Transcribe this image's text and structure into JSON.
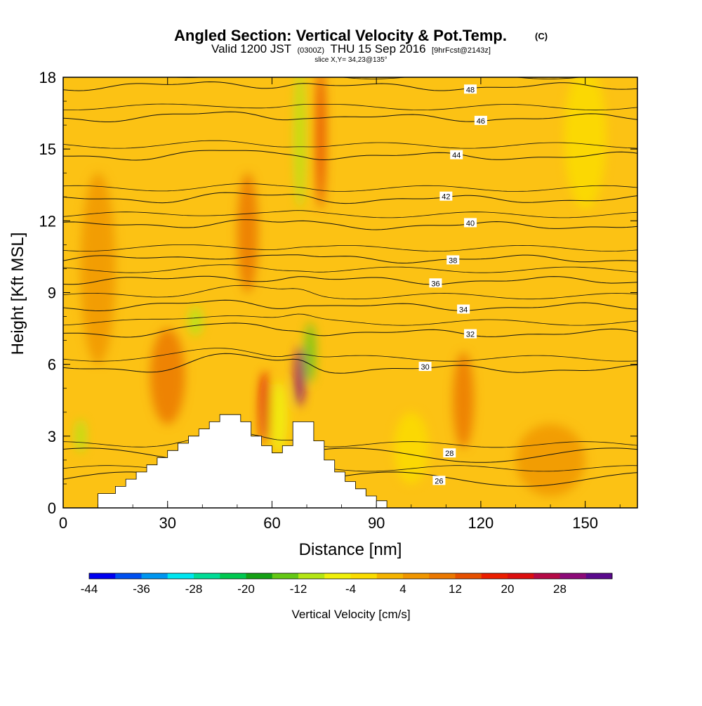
{
  "chart_data": {
    "type": "heatmap",
    "title": "Angled Section: Vertical Velocity & Pot.Temp.",
    "title_unit": "(C)",
    "subtitle": {
      "valid_prefix": "Valid 1200 JST",
      "utc": "(0300Z)",
      "date": "THU 15 Sep 2016",
      "forecast": "[9hrFcst@2143z]"
    },
    "slice_note": "slice X,Y= 34,23@135°",
    "xlabel": "Distance [nm]",
    "ylabel": "Height [Kft MSL]",
    "xlim": [
      0,
      165
    ],
    "ylim": [
      0,
      18
    ],
    "x_ticks": [
      0,
      30,
      60,
      90,
      120,
      150
    ],
    "y_ticks": [
      0,
      3,
      6,
      9,
      12,
      15,
      18
    ],
    "colorbar": {
      "label": "Vertical Velocity [cm/s]",
      "tick_labels": [
        -44,
        -36,
        -28,
        -20,
        -12,
        -4,
        4,
        12,
        20,
        28
      ],
      "colors": [
        "#0000f0",
        "#0050f0",
        "#0096f0",
        "#00e6f0",
        "#00dc96",
        "#00c850",
        "#14a014",
        "#64c814",
        "#b4e614",
        "#f0f00a",
        "#fadc00",
        "#f5b400",
        "#f09600",
        "#eb7800",
        "#e65000",
        "#eb1e00",
        "#dc0f0f",
        "#b40a46",
        "#8c0a78",
        "#5a0a8c"
      ]
    },
    "background_color": "#fcc214",
    "terrain_color": "#ffffff",
    "field_features": [
      {
        "x": 53,
        "y": 11.5,
        "w": 6,
        "h": 5.0,
        "v": 10
      },
      {
        "x": 58,
        "y": 4.2,
        "w": 3,
        "h": 3.0,
        "v": 22
      },
      {
        "x": 68,
        "y": 5.5,
        "w": 3,
        "h": 2.5,
        "v": 30
      },
      {
        "x": 71,
        "y": 6.5,
        "w": 3,
        "h": 2.5,
        "v": -14
      },
      {
        "x": 62,
        "y": 3.8,
        "w": 5,
        "h": 3.0,
        "v": -8
      },
      {
        "x": 74,
        "y": 15.5,
        "w": 3,
        "h": 6.0,
        "v": 12
      },
      {
        "x": 68,
        "y": 15.5,
        "w": 3,
        "h": 6.0,
        "v": -12
      },
      {
        "x": 38,
        "y": 7.8,
        "w": 4,
        "h": 1.2,
        "v": -10
      },
      {
        "x": 5,
        "y": 3.0,
        "w": 3,
        "h": 1.4,
        "v": -10
      },
      {
        "x": 30,
        "y": 5.5,
        "w": 10,
        "h": 4.0,
        "v": 10
      },
      {
        "x": 150,
        "y": 15.5,
        "w": 12,
        "h": 6.0,
        "v": -4
      },
      {
        "x": 10,
        "y": 10.0,
        "w": 10,
        "h": 8.0,
        "v": 6
      },
      {
        "x": 100,
        "y": 2.5,
        "w": 10,
        "h": 3.0,
        "v": -4
      },
      {
        "x": 115,
        "y": 4.5,
        "w": 6,
        "h": 4.0,
        "v": 8
      },
      {
        "x": 140,
        "y": 2.0,
        "w": 20,
        "h": 3.0,
        "v": 4
      }
    ],
    "terrain_profile": {
      "x": [
        10,
        15,
        18,
        21,
        24,
        27,
        30,
        33,
        36,
        39,
        42,
        45,
        48,
        51,
        54,
        57,
        60,
        63,
        66,
        69,
        72,
        75,
        78,
        81,
        84,
        87,
        90
      ],
      "height": [
        0.6,
        0.9,
        1.2,
        1.5,
        1.8,
        2.1,
        2.4,
        2.7,
        3.0,
        3.3,
        3.6,
        3.9,
        3.9,
        3.6,
        3.0,
        2.6,
        2.3,
        2.6,
        3.6,
        3.6,
        2.8,
        2.0,
        1.5,
        1.1,
        0.8,
        0.5,
        0.3
      ]
    },
    "isentropes": [
      {
        "label": "26",
        "base": 1.2,
        "label_x": 108
      },
      {
        "label": "28",
        "base": 2.2,
        "label_x": 111
      },
      {
        "label": "30",
        "base": 5.8,
        "label_x": 104
      },
      {
        "label": "32",
        "base": 7.3,
        "label_x": 117
      },
      {
        "label": "34",
        "base": 8.4,
        "label_x": 115
      },
      {
        "label": "36",
        "base": 9.5,
        "label_x": 107
      },
      {
        "label": "38",
        "base": 10.4,
        "label_x": 112
      },
      {
        "label": "40",
        "base": 11.8,
        "label_x": 117
      },
      {
        "label": "42",
        "base": 12.9,
        "label_x": 110
      },
      {
        "label": "44",
        "base": 14.7,
        "label_x": 113
      },
      {
        "label": "46",
        "base": 16.3,
        "label_x": 120
      },
      {
        "label": "48",
        "base": 17.6,
        "label_x": 117
      }
    ]
  }
}
